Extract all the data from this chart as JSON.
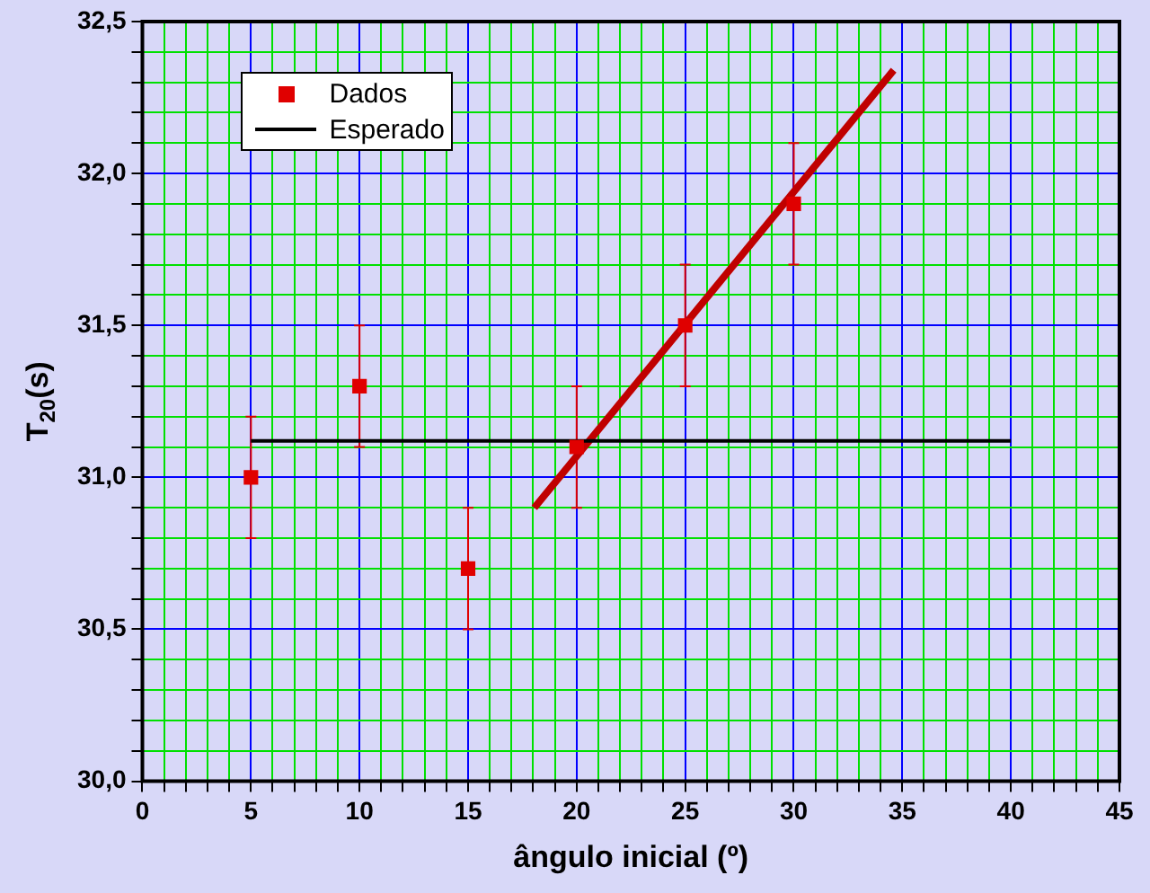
{
  "chart_data": {
    "type": "scatter",
    "xlabel": "ângulo inicial (º)",
    "ylabel": "T$_{20}$(s)",
    "xlim": [
      0,
      45
    ],
    "xticks": [
      0,
      {
        "value": 1,
        "label": null
      },
      {
        "value": 2,
        "label": null
      },
      {
        "value": 3,
        "label": null
      },
      {
        "value": 4,
        "label": null
      },
      5,
      {
        "value": 6,
        "label": null
      },
      {
        "value": 7,
        "label": null
      },
      {
        "value": 8,
        "label": null
      },
      {
        "value": 9,
        "label": null
      },
      10,
      {
        "value": 11,
        "label": null
      },
      {
        "value": 12,
        "label": null
      },
      {
        "value": 13,
        "label": null
      },
      {
        "value": 14,
        "label": null
      },
      15,
      {
        "value": 16,
        "label": null
      },
      {
        "value": 17,
        "label": null
      },
      {
        "value": 18,
        "label": null
      },
      {
        "value": 19,
        "label": null
      },
      20,
      {
        "value": 21,
        "label": null
      },
      {
        "value": 22,
        "label": null
      },
      {
        "value": 23,
        "label": null
      },
      {
        "value": 24,
        "label": null
      },
      25,
      {
        "value": 26,
        "label": null
      },
      {
        "value": 27,
        "label": null
      },
      {
        "value": 28,
        "label": null
      },
      {
        "value": 29,
        "label": null
      },
      30,
      {
        "value": 31,
        "label": null
      },
      {
        "value": 32,
        "label": null
      },
      {
        "value": 33,
        "label": null
      },
      {
        "value": 34,
        "label": null
      },
      35,
      {
        "value": 36,
        "label": null
      },
      {
        "value": 37,
        "label": null
      },
      {
        "value": 38,
        "label": null
      },
      {
        "value": 39,
        "label": null
      },
      40,
      {
        "value": 41,
        "label": null
      },
      {
        "value": 42,
        "label": null
      },
      {
        "value": 43,
        "label": null
      },
      {
        "value": 44,
        "label": null
      },
      45
    ],
    "ylim": [
      30.0,
      32.5
    ],
    "yticks": [
      {
        "value": 30.0,
        "label": "30,0"
      },
      {
        "value": 30.1,
        "label": null
      },
      {
        "value": 30.2,
        "label": null
      },
      {
        "value": 30.3,
        "label": null
      },
      {
        "value": 30.4,
        "label": null
      },
      {
        "value": 30.5,
        "label": "30,5"
      },
      {
        "value": 30.6,
        "label": null
      },
      {
        "value": 30.7,
        "label": null
      },
      {
        "value": 30.8,
        "label": null
      },
      {
        "value": 30.9,
        "label": null
      },
      {
        "value": 31.0,
        "label": "31,0"
      },
      {
        "value": 31.1,
        "label": null
      },
      {
        "value": 31.2,
        "label": null
      },
      {
        "value": 31.3,
        "label": null
      },
      {
        "value": 31.4,
        "label": null
      },
      {
        "value": 31.5,
        "label": "31,5"
      },
      {
        "value": 31.6,
        "label": null
      },
      {
        "value": 31.7,
        "label": null
      },
      {
        "value": 31.8,
        "label": null
      },
      {
        "value": 31.9,
        "label": null
      },
      {
        "value": 32.0,
        "label": "32,0"
      },
      {
        "value": 32.1,
        "label": null
      },
      {
        "value": 32.2,
        "label": null
      },
      {
        "value": 32.3,
        "label": null
      },
      {
        "value": 32.4,
        "label": null
      },
      {
        "value": 32.5,
        "label": "32,5"
      }
    ],
    "grid": true,
    "legend": "top left",
    "series": [
      {
        "name": "Dados",
        "marker": "square",
        "color": "#e00000",
        "x": [
          5,
          10,
          15,
          20,
          25,
          30
        ],
        "values": [
          31.0,
          31.3,
          30.7,
          31.1,
          31.5,
          31.9
        ],
        "errors": [
          0.2,
          0.2,
          0.2,
          0.2,
          0.2,
          0.2
        ]
      },
      {
        "name": "Esperado",
        "type": "line",
        "color": "#000000",
        "x": [
          5,
          40
        ],
        "values": [
          31.12,
          31.12
        ]
      },
      {
        "type": "line",
        "color": "#c00000",
        "x": [
          18.05,
          34.6
        ],
        "values": [
          30.9,
          32.34
        ]
      }
    ]
  }
}
